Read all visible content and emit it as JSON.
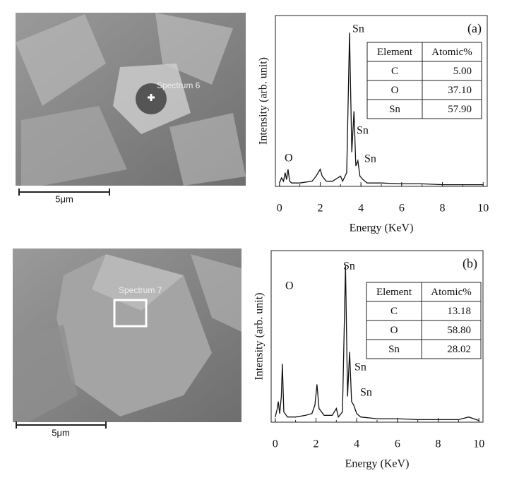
{
  "images": [
    {
      "label": "Spectrum 6",
      "scale": "5μm"
    },
    {
      "label": "Spectrum 7",
      "scale": "5μm"
    }
  ],
  "chart_data": [
    {
      "type": "line",
      "panel": "(a)",
      "x_label": "Energy (KeV)",
      "y_label": "Intensity (arb. unit)",
      "annotations": [
        "Sn",
        "Sn",
        "Sn",
        "O"
      ],
      "x": [
        0,
        0.1,
        0.2,
        0.28,
        0.35,
        0.42,
        0.5,
        0.6,
        1.0,
        1.6,
        1.8,
        2.0,
        2.1,
        2.3,
        2.6,
        3.0,
        3.1,
        3.3,
        3.44,
        3.55,
        3.66,
        3.75,
        3.85,
        3.95,
        4.1,
        4.3,
        5,
        6,
        7,
        8,
        9,
        10
      ],
      "values": [
        2,
        5,
        3,
        8,
        4,
        10,
        3,
        2,
        2,
        3,
        6,
        10,
        6,
        3,
        3,
        6,
        3,
        8,
        90,
        20,
        44,
        12,
        15,
        6,
        4,
        2,
        2,
        1.5,
        1.5,
        1,
        1,
        1
      ],
      "color": "#111",
      "xlim": [
        -0.2,
        10.2
      ],
      "ylim": [
        0,
        100
      ],
      "xticks": [
        0,
        2,
        4,
        6,
        8,
        10
      ],
      "table": {
        "header": [
          "Element",
          "Atomic%"
        ],
        "rows": [
          [
            "C",
            "5.00"
          ],
          [
            "O",
            "37.10"
          ],
          [
            "Sn",
            "57.90"
          ]
        ]
      }
    },
    {
      "type": "line",
      "panel": "(b)",
      "x_label": "Energy (KeV)",
      "y_label": "Intensity (arb. unit)",
      "annotations": [
        "Sn",
        "Sn",
        "Sn",
        "O"
      ],
      "x": [
        0,
        0.1,
        0.15,
        0.22,
        0.3,
        0.35,
        0.42,
        0.6,
        1.0,
        1.5,
        1.8,
        1.95,
        2.05,
        2.15,
        2.4,
        2.8,
        3.0,
        3.1,
        3.3,
        3.45,
        3.55,
        3.65,
        3.75,
        3.85,
        4.0,
        4.2,
        5,
        6,
        7,
        8,
        9,
        9.5,
        10
      ],
      "values": [
        3,
        8,
        12,
        5,
        15,
        34,
        6,
        3,
        3,
        4,
        5,
        10,
        22,
        8,
        4,
        4,
        8,
        3,
        6,
        91,
        15,
        41,
        12,
        10,
        5,
        3,
        2,
        2,
        1.5,
        1.5,
        1.5,
        3,
        1
      ],
      "color": "#111",
      "xlim": [
        -0.2,
        10.2
      ],
      "ylim": [
        0,
        100
      ],
      "xticks": [
        0,
        2,
        4,
        6,
        8,
        10
      ],
      "table": {
        "header": [
          "Element",
          "Atomic%"
        ],
        "rows": [
          [
            "C",
            "13.18"
          ],
          [
            "O",
            "58.80"
          ],
          [
            "Sn",
            "28.02"
          ]
        ]
      }
    }
  ]
}
